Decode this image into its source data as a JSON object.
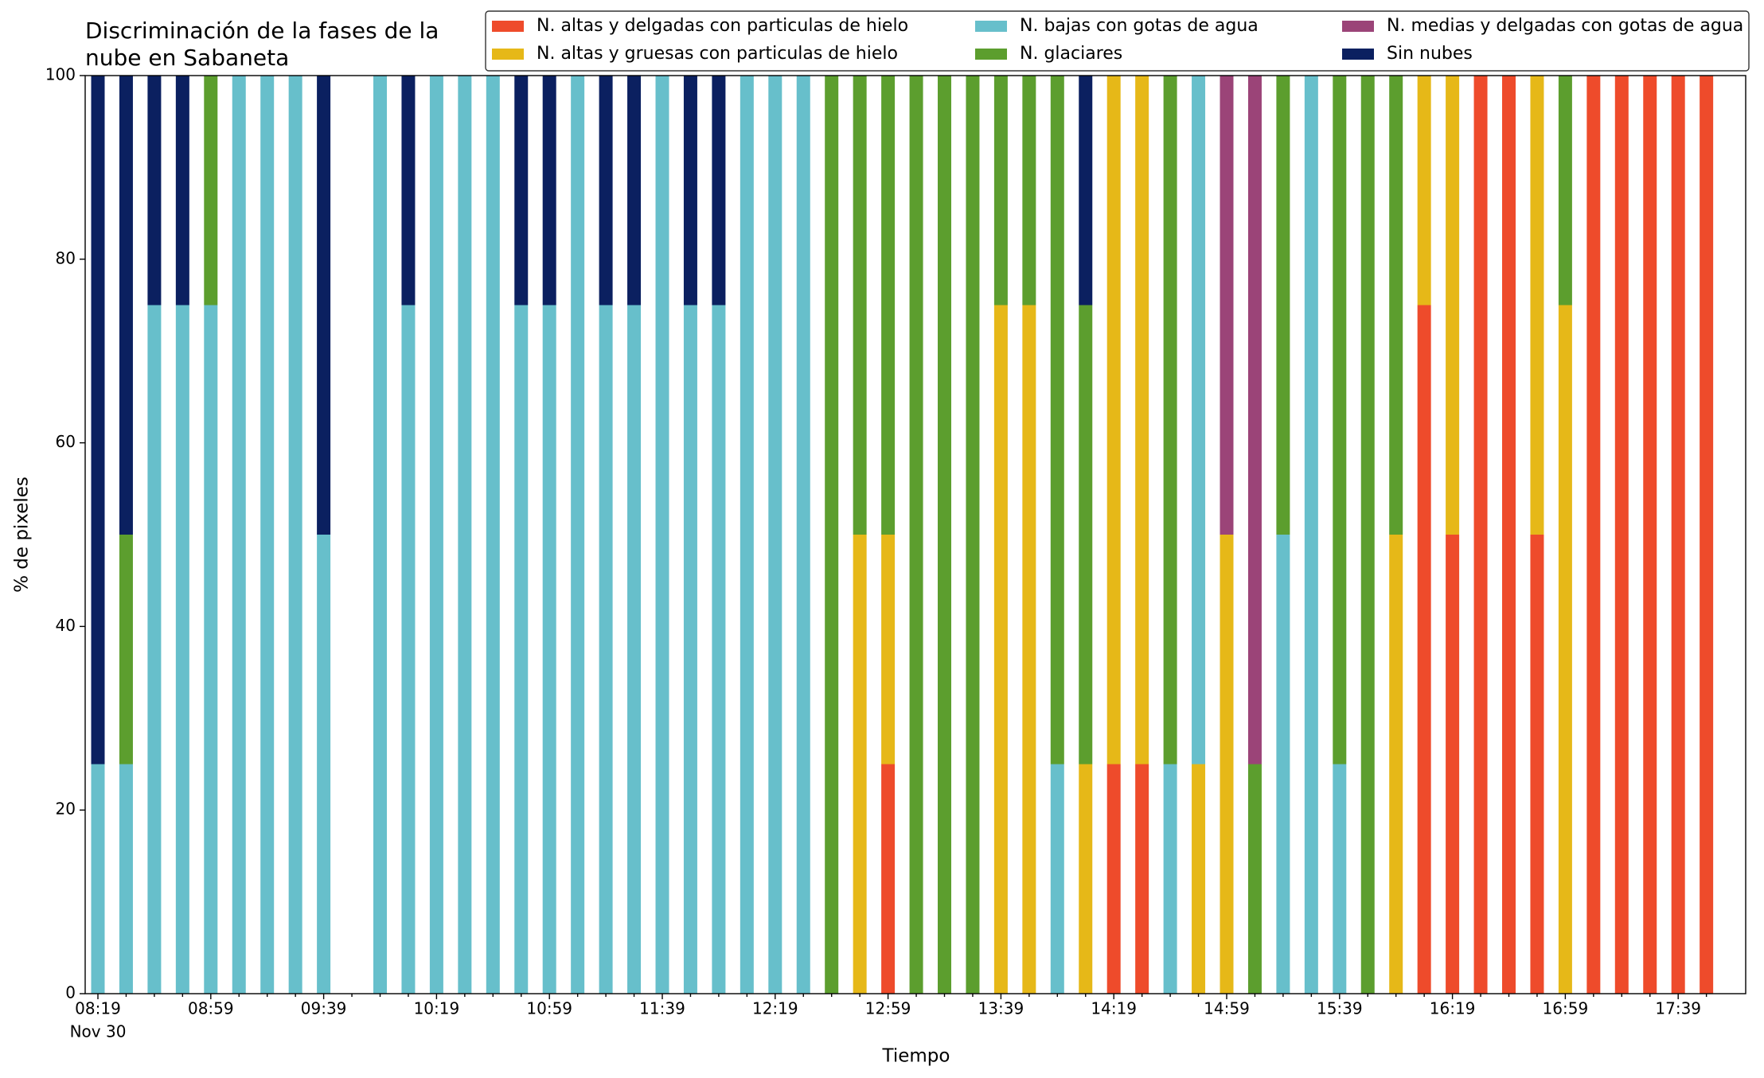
{
  "chart_data": {
    "type": "bar",
    "stacked": true,
    "title": [
      "Discriminación de la fases de la",
      "nube en Sabaneta"
    ],
    "x_label": "Tiempo",
    "y_label": "% de pixeles",
    "date_label": "Nov 30",
    "categories": [
      "08:19",
      null,
      null,
      null,
      "08:59",
      null,
      null,
      null,
      "09:39",
      null,
      null,
      null,
      "10:19",
      null,
      null,
      null,
      "10:59",
      null,
      null,
      null,
      "11:39",
      null,
      null,
      null,
      "12:19",
      null,
      null,
      null,
      "12:59",
      null,
      null,
      null,
      "13:39",
      null,
      null,
      null,
      "14:19",
      null,
      null,
      null,
      "14:59",
      null,
      null,
      null,
      "15:39",
      null,
      null,
      null,
      "16:19",
      null,
      null,
      null,
      "16:59",
      null,
      null,
      null,
      "17:39",
      null
    ],
    "series": [
      {
        "name": "N. altas y delgadas con particulas de hielo",
        "color": "#ee4b2b",
        "values": [
          0,
          0,
          0,
          0,
          0,
          0,
          0,
          0,
          0,
          null,
          0,
          0,
          0,
          0,
          0,
          0,
          0,
          0,
          0,
          0,
          0,
          0,
          0,
          0,
          0,
          0,
          0,
          0,
          25,
          0,
          0,
          0,
          0,
          0,
          0,
          0,
          25,
          25,
          0,
          0,
          0,
          0,
          0,
          0,
          0,
          0,
          0,
          75,
          50,
          100,
          100,
          50,
          0,
          100,
          100,
          100,
          100,
          100
        ]
      },
      {
        "name": "N. altas y gruesas con particulas de hielo",
        "color": "#e6b818",
        "values": [
          0,
          0,
          0,
          0,
          0,
          0,
          0,
          0,
          0,
          null,
          0,
          0,
          0,
          0,
          0,
          0,
          0,
          0,
          0,
          0,
          0,
          0,
          0,
          0,
          0,
          0,
          0,
          50,
          25,
          0,
          0,
          0,
          75,
          75,
          0,
          25,
          75,
          75,
          0,
          25,
          50,
          0,
          0,
          0,
          0,
          0,
          50,
          25,
          50,
          0,
          0,
          50,
          75,
          0,
          0,
          0,
          0,
          0
        ]
      },
      {
        "name": "N. bajas con gotas de agua",
        "color": "#67bfcb",
        "values": [
          25,
          25,
          75,
          75,
          75,
          100,
          100,
          100,
          50,
          null,
          100,
          75,
          100,
          100,
          100,
          75,
          75,
          100,
          75,
          75,
          100,
          75,
          75,
          100,
          100,
          100,
          0,
          0,
          0,
          0,
          0,
          0,
          0,
          0,
          25,
          0,
          0,
          0,
          25,
          75,
          0,
          0,
          50,
          100,
          25,
          0,
          0,
          0,
          0,
          0,
          0,
          0,
          0,
          0,
          0,
          0,
          0,
          0
        ]
      },
      {
        "name": "N. glaciares",
        "color": "#5c9e2e",
        "values": [
          0,
          25,
          0,
          0,
          25,
          0,
          0,
          0,
          0,
          null,
          0,
          0,
          0,
          0,
          0,
          0,
          0,
          0,
          0,
          0,
          0,
          0,
          0,
          0,
          0,
          0,
          100,
          50,
          50,
          100,
          100,
          100,
          25,
          25,
          75,
          50,
          0,
          0,
          75,
          0,
          0,
          25,
          50,
          0,
          75,
          100,
          50,
          0,
          0,
          0,
          0,
          0,
          25,
          0,
          0,
          0,
          0,
          0
        ]
      },
      {
        "name": "N. medias y delgadas con gotas de agua",
        "color": "#9b4478",
        "values": [
          0,
          0,
          0,
          0,
          0,
          0,
          0,
          0,
          0,
          null,
          0,
          0,
          0,
          0,
          0,
          0,
          0,
          0,
          0,
          0,
          0,
          0,
          0,
          0,
          0,
          0,
          0,
          0,
          0,
          0,
          0,
          0,
          0,
          0,
          0,
          0,
          0,
          0,
          0,
          0,
          50,
          75,
          0,
          0,
          0,
          0,
          0,
          0,
          0,
          0,
          0,
          0,
          0,
          0,
          0,
          0,
          0,
          0
        ]
      },
      {
        "name": "Sin nubes",
        "color": "#0b2060",
        "values": [
          75,
          50,
          25,
          25,
          0,
          0,
          0,
          0,
          50,
          null,
          0,
          25,
          0,
          0,
          0,
          25,
          25,
          0,
          25,
          25,
          0,
          25,
          25,
          0,
          0,
          0,
          0,
          0,
          0,
          0,
          0,
          0,
          0,
          0,
          0,
          25,
          0,
          0,
          0,
          0,
          0,
          0,
          0,
          0,
          0,
          0,
          0,
          0,
          0,
          0,
          0,
          0,
          0,
          0,
          0,
          0,
          0,
          0
        ]
      }
    ],
    "ylim": [
      0,
      100
    ],
    "yticks": [
      0,
      20,
      40,
      60,
      80,
      100
    ],
    "grid": false,
    "legend": "upper right"
  }
}
